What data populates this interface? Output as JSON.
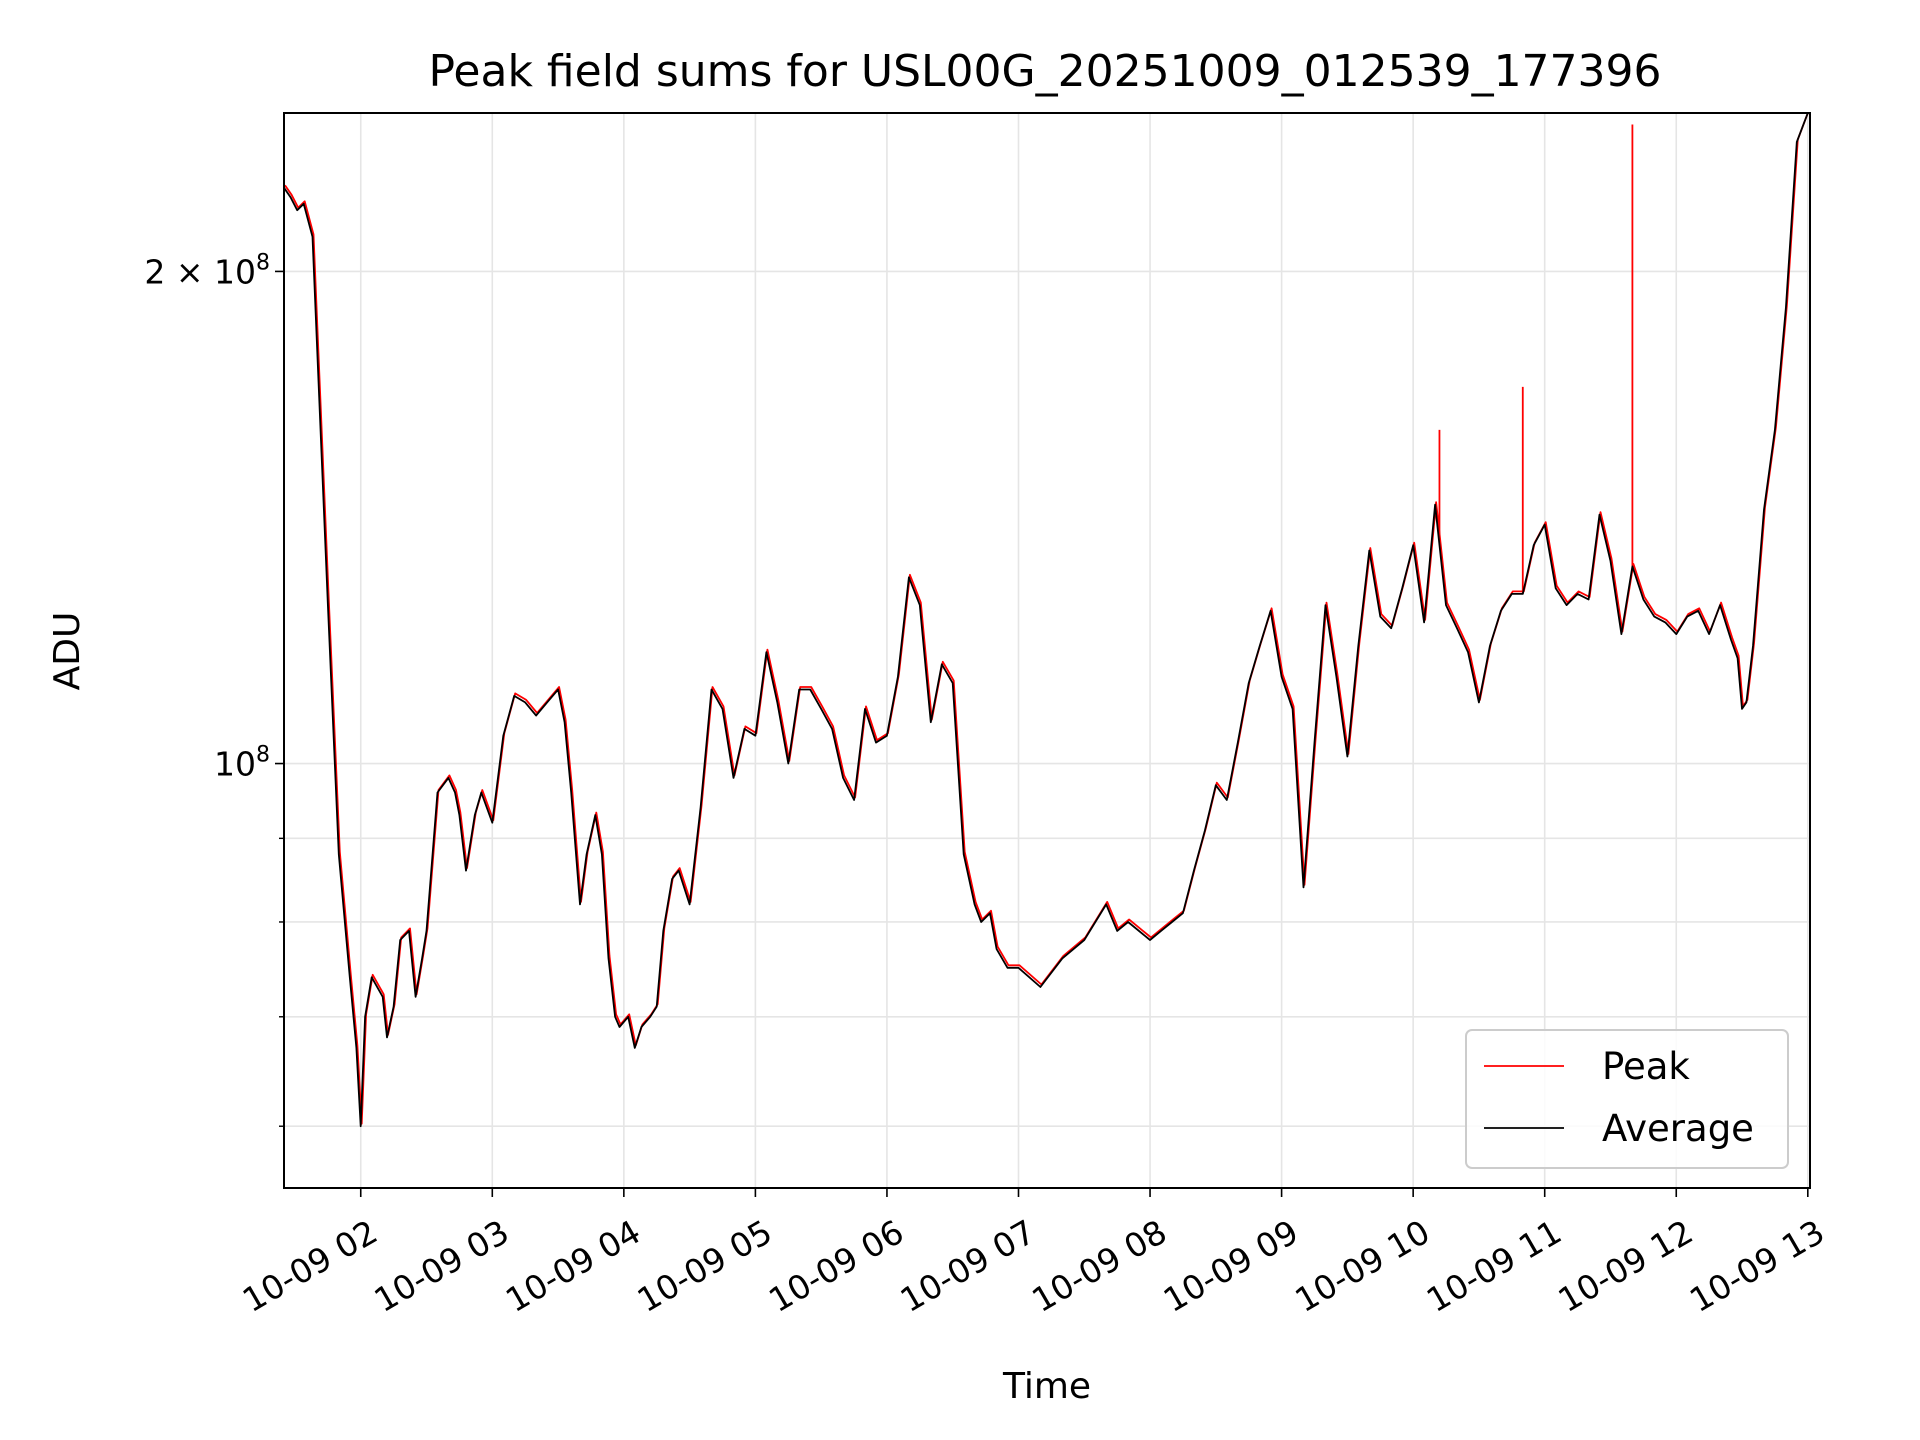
{
  "chart_data": {
    "type": "line",
    "title": "Peak field sums for USL00G_20251009_012539_177396",
    "xlabel": "Time",
    "ylabel": "ADU",
    "y_scale": "log",
    "ylim": [
      55000000,
      250000000
    ],
    "xlim": [
      "2025-10-09 01:25",
      "2025-10-09 13:01"
    ],
    "x_ticks": [
      {
        "t": "2025-10-09 02:00",
        "label": "10-09 02"
      },
      {
        "t": "2025-10-09 03:00",
        "label": "10-09 03"
      },
      {
        "t": "2025-10-09 04:00",
        "label": "10-09 04"
      },
      {
        "t": "2025-10-09 05:00",
        "label": "10-09 05"
      },
      {
        "t": "2025-10-09 06:00",
        "label": "10-09 06"
      },
      {
        "t": "2025-10-09 07:00",
        "label": "10-09 07"
      },
      {
        "t": "2025-10-09 08:00",
        "label": "10-09 08"
      },
      {
        "t": "2025-10-09 09:00",
        "label": "10-09 09"
      },
      {
        "t": "2025-10-09 10:00",
        "label": "10-09 10"
      },
      {
        "t": "2025-10-09 11:00",
        "label": "10-09 11"
      },
      {
        "t": "2025-10-09 12:00",
        "label": "10-09 12"
      },
      {
        "t": "2025-10-09 13:00",
        "label": "10-09 13"
      }
    ],
    "y_major_ticks": [
      {
        "value": 100000000,
        "label_base": "10",
        "label_exp": "8"
      },
      {
        "value": 200000000,
        "label_base": "2 × 10",
        "label_exp": "8"
      }
    ],
    "y_minor_ticks": [
      60000000,
      70000000,
      80000000,
      90000000
    ],
    "grid": true,
    "legend_position": "lower-right",
    "series": [
      {
        "name": "Average",
        "color": "#000000",
        "x": [
          "2025-10-09 01:25",
          "2025-10-09 01:28",
          "2025-10-09 01:31",
          "2025-10-09 01:34",
          "2025-10-09 01:38",
          "2025-10-09 01:41",
          "2025-10-09 01:45",
          "2025-10-09 01:50",
          "2025-10-09 01:55",
          "2025-10-09 01:58",
          "2025-10-09 02:00",
          "2025-10-09 02:02",
          "2025-10-09 02:05",
          "2025-10-09 02:10",
          "2025-10-09 02:12",
          "2025-10-09 02:15",
          "2025-10-09 02:18",
          "2025-10-09 02:22",
          "2025-10-09 02:25",
          "2025-10-09 02:28",
          "2025-10-09 02:30",
          "2025-10-09 02:35",
          "2025-10-09 02:40",
          "2025-10-09 02:43",
          "2025-10-09 02:45",
          "2025-10-09 02:48",
          "2025-10-09 02:52",
          "2025-10-09 02:55",
          "2025-10-09 03:00",
          "2025-10-09 03:05",
          "2025-10-09 03:10",
          "2025-10-09 03:15",
          "2025-10-09 03:20",
          "2025-10-09 03:25",
          "2025-10-09 03:30",
          "2025-10-09 03:33",
          "2025-10-09 03:36",
          "2025-10-09 03:40",
          "2025-10-09 03:43",
          "2025-10-09 03:47",
          "2025-10-09 03:50",
          "2025-10-09 03:53",
          "2025-10-09 03:56",
          "2025-10-09 03:58",
          "2025-10-09 04:02",
          "2025-10-09 04:05",
          "2025-10-09 04:08",
          "2025-10-09 04:12",
          "2025-10-09 04:15",
          "2025-10-09 04:18",
          "2025-10-09 04:22",
          "2025-10-09 04:25",
          "2025-10-09 04:30",
          "2025-10-09 04:35",
          "2025-10-09 04:40",
          "2025-10-09 04:45",
          "2025-10-09 04:50",
          "2025-10-09 04:55",
          "2025-10-09 05:00",
          "2025-10-09 05:05",
          "2025-10-09 05:10",
          "2025-10-09 05:15",
          "2025-10-09 05:20",
          "2025-10-09 05:25",
          "2025-10-09 05:30",
          "2025-10-09 05:35",
          "2025-10-09 05:40",
          "2025-10-09 05:45",
          "2025-10-09 05:50",
          "2025-10-09 05:55",
          "2025-10-09 06:00",
          "2025-10-09 06:05",
          "2025-10-09 06:10",
          "2025-10-09 06:15",
          "2025-10-09 06:20",
          "2025-10-09 06:25",
          "2025-10-09 06:30",
          "2025-10-09 06:35",
          "2025-10-09 06:40",
          "2025-10-09 06:43",
          "2025-10-09 06:47",
          "2025-10-09 06:50",
          "2025-10-09 06:55",
          "2025-10-09 07:00",
          "2025-10-09 07:10",
          "2025-10-09 07:20",
          "2025-10-09 07:30",
          "2025-10-09 07:40",
          "2025-10-09 07:45",
          "2025-10-09 07:50",
          "2025-10-09 08:00",
          "2025-10-09 08:05",
          "2025-10-09 08:10",
          "2025-10-09 08:15",
          "2025-10-09 08:20",
          "2025-10-09 08:25",
          "2025-10-09 08:30",
          "2025-10-09 08:35",
          "2025-10-09 08:40",
          "2025-10-09 08:45",
          "2025-10-09 08:50",
          "2025-10-09 08:55",
          "2025-10-09 09:00",
          "2025-10-09 09:05",
          "2025-10-09 09:10",
          "2025-10-09 09:15",
          "2025-10-09 09:20",
          "2025-10-09 09:25",
          "2025-10-09 09:30",
          "2025-10-09 09:35",
          "2025-10-09 09:40",
          "2025-10-09 09:45",
          "2025-10-09 09:50",
          "2025-10-09 09:55",
          "2025-10-09 10:00",
          "2025-10-09 10:05",
          "2025-10-09 10:10",
          "2025-10-09 10:15",
          "2025-10-09 10:20",
          "2025-10-09 10:25",
          "2025-10-09 10:30",
          "2025-10-09 10:35",
          "2025-10-09 10:40",
          "2025-10-09 10:45",
          "2025-10-09 10:50",
          "2025-10-09 10:55",
          "2025-10-09 11:00",
          "2025-10-09 11:05",
          "2025-10-09 11:10",
          "2025-10-09 11:15",
          "2025-10-09 11:20",
          "2025-10-09 11:25",
          "2025-10-09 11:30",
          "2025-10-09 11:35",
          "2025-10-09 11:40",
          "2025-10-09 11:45",
          "2025-10-09 11:50",
          "2025-10-09 11:55",
          "2025-10-09 12:00",
          "2025-10-09 12:05",
          "2025-10-09 12:10",
          "2025-10-09 12:15",
          "2025-10-09 12:20",
          "2025-10-09 12:25",
          "2025-10-09 12:28",
          "2025-10-09 12:30",
          "2025-10-09 12:32",
          "2025-10-09 12:35",
          "2025-10-09 12:40",
          "2025-10-09 12:45",
          "2025-10-09 12:50",
          "2025-10-09 12:55",
          "2025-10-09 13:00"
        ],
        "values": [
          225000000,
          222000000,
          218000000,
          220000000,
          210000000,
          168000000,
          125000000,
          88000000,
          74000000,
          67000000,
          60000000,
          70000000,
          74000000,
          72000000,
          68000000,
          71000000,
          78000000,
          79000000,
          72000000,
          76000000,
          79000000,
          96000000,
          98000000,
          96000000,
          93000000,
          86000000,
          93000000,
          96000000,
          92000000,
          104000000,
          110000000,
          109000000,
          107000000,
          109000000,
          111000000,
          106000000,
          96000000,
          82000000,
          88000000,
          93000000,
          88000000,
          76000000,
          70000000,
          69000000,
          70000000,
          67000000,
          69000000,
          70000000,
          71000000,
          79000000,
          85000000,
          86000000,
          82000000,
          94000000,
          111000000,
          108000000,
          98000000,
          105000000,
          104000000,
          117000000,
          109000000,
          100000000,
          111000000,
          111000000,
          108000000,
          105000000,
          98000000,
          95000000,
          108000000,
          103000000,
          104000000,
          113000000,
          130000000,
          125000000,
          106000000,
          115000000,
          112000000,
          88000000,
          82000000,
          80000000,
          81000000,
          77000000,
          75000000,
          75000000,
          73000000,
          76000000,
          78000000,
          82000000,
          79000000,
          80000000,
          78000000,
          79000000,
          80000000,
          81000000,
          86000000,
          91000000,
          97000000,
          95000000,
          103000000,
          112000000,
          118000000,
          124000000,
          113000000,
          108000000,
          84000000,
          103000000,
          125000000,
          113000000,
          101000000,
          118000000,
          135000000,
          123000000,
          121000000,
          128000000,
          136000000,
          122000000,
          144000000,
          125000000,
          121000000,
          117000000,
          109000000,
          118000000,
          124000000,
          127000000,
          127000000,
          136000000,
          140000000,
          128000000,
          125000000,
          127000000,
          126000000,
          142000000,
          133000000,
          120000000,
          132000000,
          126000000,
          123000000,
          122000000,
          120000000,
          123000000,
          124000000,
          120000000,
          125000000,
          119000000,
          116000000,
          108000000,
          109000000,
          118000000,
          143000000,
          160000000,
          190000000,
          240000000,
          250000000
        ]
      },
      {
        "name": "Peak",
        "color": "#ff0000",
        "spikes": [
          {
            "x": "2025-10-09 10:12",
            "value": 160000000
          },
          {
            "x": "2025-10-09 10:50",
            "value": 170000000
          },
          {
            "x": "2025-10-09 11:40",
            "value": 246000000
          }
        ]
      }
    ]
  }
}
